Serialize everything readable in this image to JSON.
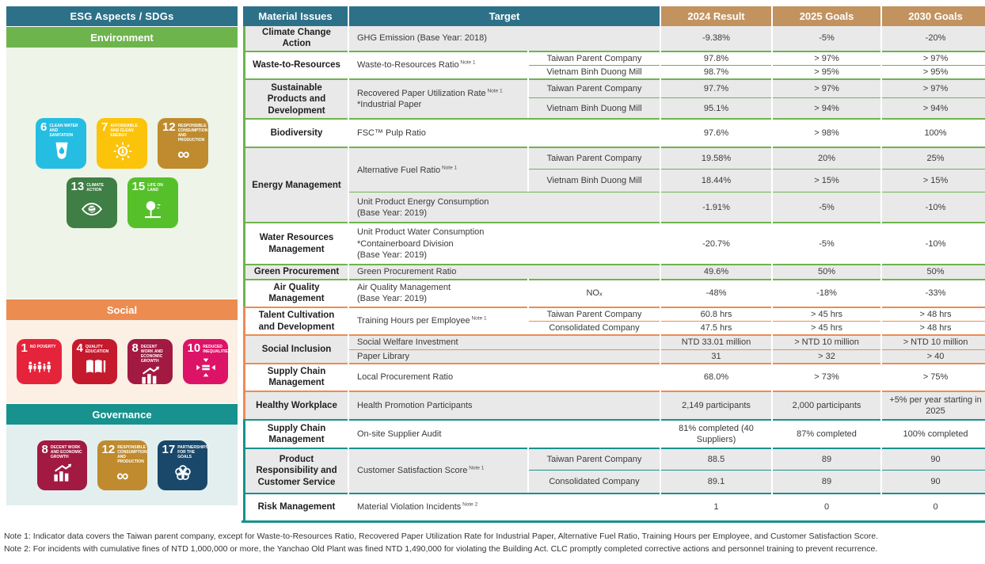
{
  "colors": {
    "env": "#6db44d",
    "social": "#ec8c50",
    "gov": "#17928e",
    "header_teal": "#2d7189",
    "header_tan": "#c2935f",
    "row_gray": "#e9e9e9",
    "env_bg": "#eef4e7",
    "social_bg": "#fcefe4",
    "gov_bg": "#e3efef"
  },
  "left_panel": {
    "header": "ESG Aspects / SDGs",
    "sections": [
      {
        "id": "env",
        "label": "Environment",
        "color": "#6db44d",
        "bg": "#eef4e7",
        "sdg_rows": [
          [
            {
              "number": "6",
              "title": "CLEAN WATER AND SANITATION",
              "color": "#26bde2",
              "glyph": "water"
            },
            {
              "number": "7",
              "title": "AFFORDABLE AND CLEAN ENERGY",
              "color": "#fcc30b",
              "glyph": "sun"
            },
            {
              "number": "12",
              "title": "RESPONSIBLE CONSUMPTION AND PRODUCTION",
              "color": "#bf8b2e",
              "glyph": "infinity"
            }
          ],
          [
            {
              "number": "13",
              "title": "CLIMATE ACTION",
              "color": "#3f7e44",
              "glyph": "eye"
            },
            {
              "number": "15",
              "title": "LIFE ON LAND",
              "color": "#56c02b",
              "glyph": "tree"
            }
          ]
        ]
      },
      {
        "id": "social",
        "label": "Social",
        "color": "#ec8c50",
        "bg": "#fcefe4",
        "sdg_rows": [
          [
            {
              "number": "1",
              "title": "NO POVERTY",
              "color": "#e5243b",
              "glyph": "family"
            },
            {
              "number": "4",
              "title": "QUALITY EDUCATION",
              "color": "#c5192d",
              "glyph": "book"
            },
            {
              "number": "8",
              "title": "DECENT WORK AND ECONOMIC GROWTH",
              "color": "#a21942",
              "glyph": "growth"
            },
            {
              "number": "10",
              "title": "REDUCED INEQUALITIES",
              "color": "#dd1367",
              "glyph": "equality"
            }
          ]
        ]
      },
      {
        "id": "gov",
        "label": "Governance",
        "color": "#17928e",
        "bg": "#e3efef",
        "sdg_rows": [
          [
            {
              "number": "8",
              "title": "DECENT WORK AND ECONOMIC GROWTH",
              "color": "#a21942",
              "glyph": "growth"
            },
            {
              "number": "12",
              "title": "RESPONSIBLE CONSUMPTION AND PRODUCTION",
              "color": "#bf8b2e",
              "glyph": "infinity"
            },
            {
              "number": "17",
              "title": "PARTNERSHIPS FOR THE GOALS",
              "color": "#19486a",
              "glyph": "partnership"
            }
          ]
        ]
      }
    ]
  },
  "table": {
    "headers": {
      "material_issues": "Material Issues",
      "target": "Target",
      "result_2024": "2024 Result",
      "goals_2025": "2025 Goals",
      "goals_2030": "2030 Goals"
    },
    "rows": [
      {
        "sec": "env",
        "sep": "none",
        "shade": "g",
        "issue": {
          "text": "Climate Change Action"
        },
        "target": {
          "lines": [
            "GHG Emission (Base Year: 2018)"
          ],
          "colspan": 2
        },
        "values": [
          "-9.38%",
          "-5%",
          "-20%"
        ]
      },
      {
        "sec": "env",
        "sep": "group",
        "shade": "w",
        "issue": {
          "text": "Waste-to-Resources",
          "rowspan": 2
        },
        "target": {
          "lines": [
            "Waste-to-Resources Ratio"
          ],
          "note": "Note 1",
          "rowspan": 2
        },
        "company": "Taiwan Parent Company",
        "values": [
          "97.8%",
          "> 97%",
          "> 97%"
        ]
      },
      {
        "sec": "env",
        "sep": "sub",
        "shade": "w",
        "company": "Vietnam Binh Duong Mill",
        "values": [
          "98.7%",
          "> 95%",
          "> 95%"
        ]
      },
      {
        "sec": "env",
        "sep": "group",
        "shade": "g",
        "issue": {
          "text": "Sustainable Products and Development",
          "rowspan": 2
        },
        "target": {
          "lines": [
            "Recovered Paper Utilization Rate",
            "*Industrial Paper"
          ],
          "note": "Note 1",
          "rowspan": 2
        },
        "company": "Taiwan Parent Company",
        "values": [
          "97.7%",
          "> 97%",
          "> 97%"
        ]
      },
      {
        "sec": "env",
        "sep": "sub",
        "shade": "g",
        "company": "Vietnam Binh Duong Mill",
        "values": [
          "95.1%",
          "> 94%",
          "> 94%"
        ]
      },
      {
        "sec": "env",
        "sep": "group",
        "shade": "w",
        "issue": {
          "text": "Biodiversity"
        },
        "target": {
          "lines": [
            "FSC™ Pulp Ratio"
          ],
          "colspan": 2
        },
        "values": [
          "97.6%",
          "> 98%",
          "100%"
        ]
      },
      {
        "sec": "env",
        "sep": "group",
        "shade": "g",
        "issue": {
          "text": "Energy Management",
          "rowspan": 3
        },
        "target": {
          "lines": [
            "Alternative Fuel Ratio"
          ],
          "note": "Note 1",
          "rowspan": 2
        },
        "company": "Taiwan Parent Company",
        "values": [
          "19.58%",
          "20%",
          "25%"
        ]
      },
      {
        "sec": "env",
        "sep": "sub",
        "shade": "g",
        "company": "Vietnam Binh Duong Mill",
        "values": [
          "18.44%",
          "> 15%",
          "> 15%"
        ]
      },
      {
        "sec": "env",
        "sep": "sub",
        "shade": "g",
        "target": {
          "lines": [
            "Unit Product Energy Consumption",
            "(Base Year: 2019)"
          ],
          "colspan": 2
        },
        "values": [
          "-1.91%",
          "-5%",
          "-10%"
        ]
      },
      {
        "sec": "env",
        "sep": "group",
        "shade": "w",
        "issue": {
          "text": "Water Resources Management"
        },
        "target": {
          "lines": [
            "Unit Product Water Consumption",
            "*Containerboard Division",
            "(Base Year: 2019)"
          ],
          "colspan": 2
        },
        "values": [
          "-20.7%",
          "-5%",
          "-10%"
        ]
      },
      {
        "sec": "env",
        "sep": "group",
        "shade": "g",
        "issue": {
          "text": "Green Procurement"
        },
        "target": {
          "lines": [
            "Green Procurement Ratio"
          ],
          "colspan": 2
        },
        "values": [
          "49.6%",
          "50%",
          "50%"
        ]
      },
      {
        "sec": "env",
        "sep": "group",
        "shade": "w",
        "issue": {
          "text": "Air Quality Management"
        },
        "target": {
          "lines": [
            "Air Quality Management",
            "(Base Year: 2019)"
          ]
        },
        "company": "NOₓ",
        "values": [
          "-48%",
          "-18%",
          "-33%"
        ]
      },
      {
        "sec": "social",
        "sep": "group",
        "shade": "w",
        "issue": {
          "text": "Talent Cultivation and Development",
          "rowspan": 2
        },
        "target": {
          "lines": [
            "Training Hours per Employee"
          ],
          "note": "Note 1",
          "rowspan": 2
        },
        "company": "Taiwan Parent Company",
        "values": [
          "60.8 hrs",
          "> 45 hrs",
          "> 48 hrs"
        ]
      },
      {
        "sec": "social",
        "sep": "sub",
        "shade": "w",
        "company": "Consolidated Company",
        "values": [
          "47.5 hrs",
          "> 45 hrs",
          "> 48 hrs"
        ]
      },
      {
        "sec": "social",
        "sep": "group",
        "shade": "g",
        "issue": {
          "text": "Social Inclusion",
          "rowspan": 2
        },
        "target": {
          "lines": [
            "Social Welfare Investment"
          ],
          "colspan": 2
        },
        "values": [
          "NTD 33.01 million",
          "> NTD 10 million",
          "> NTD 10 million"
        ]
      },
      {
        "sec": "social",
        "sep": "sub",
        "shade": "g",
        "target": {
          "lines": [
            "Paper Library"
          ],
          "colspan": 2
        },
        "values": [
          "31",
          "> 32",
          "> 40"
        ]
      },
      {
        "sec": "social",
        "sep": "group",
        "shade": "w",
        "issue": {
          "text": "Supply Chain Management"
        },
        "target": {
          "lines": [
            "Local Procurement Ratio"
          ],
          "colspan": 2
        },
        "values": [
          "68.0%",
          "> 73%",
          "> 75%"
        ]
      },
      {
        "sec": "social",
        "sep": "group",
        "shade": "g",
        "issue": {
          "text": "Healthy Workplace"
        },
        "target": {
          "lines": [
            "Health Promotion Participants"
          ],
          "colspan": 2
        },
        "values": [
          "2,149 participants",
          "2,000 participants",
          "+5% per year starting in 2025"
        ]
      },
      {
        "sec": "gov",
        "sep": "group",
        "shade": "w",
        "issue": {
          "text": "Supply Chain Management"
        },
        "target": {
          "lines": [
            "On-site Supplier Audit"
          ],
          "colspan": 2
        },
        "values": [
          "81% completed (40 Suppliers)",
          "87% completed",
          "100% completed"
        ]
      },
      {
        "sec": "gov",
        "sep": "group",
        "shade": "g",
        "issue": {
          "text": "Product Responsibility and Customer Service",
          "rowspan": 2
        },
        "target": {
          "lines": [
            "Customer Satisfaction Score"
          ],
          "note": "Note 1",
          "rowspan": 2
        },
        "company": "Taiwan Parent Company",
        "values": [
          "88.5",
          "89",
          "90"
        ]
      },
      {
        "sec": "gov",
        "sep": "sub",
        "shade": "g",
        "company": "Consolidated Company",
        "values": [
          "89.1",
          "89",
          "90"
        ]
      },
      {
        "sec": "gov",
        "sep": "group",
        "shade": "w",
        "issue": {
          "text": "Risk Management"
        },
        "target": {
          "lines": [
            "Material Violation Incidents"
          ],
          "note": "Note 2",
          "colspan": 2
        },
        "values": [
          "1",
          "0",
          "0"
        ]
      }
    ]
  },
  "notes": [
    "Note 1: Indicator data covers the Taiwan parent company, except for Waste-to-Resources Ratio, Recovered Paper Utilization Rate for Industrial Paper, Alternative Fuel Ratio, Training Hours per Employee, and Customer Satisfaction Score.",
    "Note 2: For incidents with cumulative fines of NTD 1,000,000 or more, the Yanchao Old Plant was fined NTD 1,490,000 for violating the Building Act. CLC promptly completed corrective actions and personnel training to prevent recurrence."
  ]
}
